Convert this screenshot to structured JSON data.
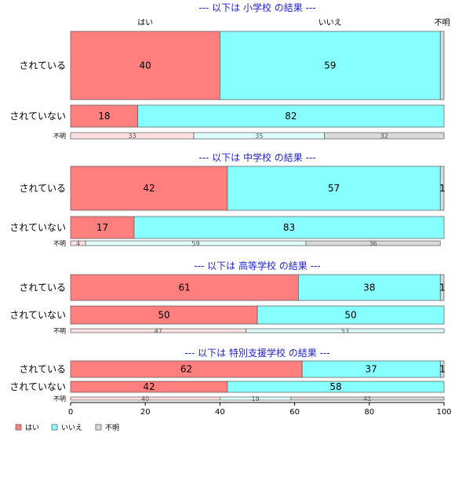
{
  "chart_data": {
    "type": "bar",
    "orientation": "horizontal",
    "stacked": "percent",
    "categories_header": [
      "はい",
      "いいえ",
      "不明"
    ],
    "colors": {
      "はい": "#ff7f7f",
      "いいえ": "#87ffff",
      "不明": "#d9d9d9"
    },
    "xlim": [
      0,
      100
    ],
    "x_ticks": [
      0,
      20,
      40,
      60,
      80,
      100
    ],
    "legend": {
      "position": "bottom-left",
      "items": [
        "はい",
        "いいえ",
        "不明"
      ]
    },
    "grid": false,
    "panels": [
      {
        "title": "--- 以下は 小学校 の結果 ---",
        "rows": [
          {
            "label": "されている",
            "values": [
              40,
              59,
              1
            ],
            "labels": [
              "40",
              "59",
              ""
            ]
          },
          {
            "label": "されていない",
            "values": [
              18,
              82,
              0
            ],
            "labels": [
              "18",
              "82",
              ""
            ]
          },
          {
            "label": "不明",
            "values": [
              33,
              35,
              32
            ],
            "labels": [
              "33",
              "35",
              "32"
            ]
          }
        ]
      },
      {
        "title": "--- 以下は 中学校 の結果 ---",
        "rows": [
          {
            "label": "されている",
            "values": [
              42,
              57,
              1
            ],
            "labels": [
              "42",
              "57",
              "1"
            ]
          },
          {
            "label": "されていない",
            "values": [
              17,
              83,
              0
            ],
            "labels": [
              "17",
              "83",
              ""
            ]
          },
          {
            "label": "不明",
            "values": [
              4,
              59,
              36
            ],
            "labels": [
              "4",
              "59",
              "36"
            ]
          }
        ]
      },
      {
        "title": "--- 以下は 高等学校 の結果 ---",
        "rows": [
          {
            "label": "されている",
            "values": [
              61,
              38,
              1
            ],
            "labels": [
              "61",
              "38",
              "1"
            ]
          },
          {
            "label": "されていない",
            "values": [
              50,
              50,
              0
            ],
            "labels": [
              "50",
              "50",
              ""
            ]
          },
          {
            "label": "不明",
            "values": [
              47,
              53,
              0
            ],
            "labels": [
              "47",
              "53",
              ""
            ]
          }
        ]
      },
      {
        "title": "--- 以下は 特別支援学校 の結果 ---",
        "rows": [
          {
            "label": "されている",
            "values": [
              62,
              37,
              1
            ],
            "labels": [
              "62",
              "37",
              "1"
            ]
          },
          {
            "label": "されていない",
            "values": [
              42,
              58,
              0
            ],
            "labels": [
              "42",
              "58",
              ""
            ]
          },
          {
            "label": "不明",
            "values": [
              40,
              19,
              41
            ],
            "labels": [
              "40",
              "19",
              "41"
            ]
          }
        ]
      }
    ]
  }
}
